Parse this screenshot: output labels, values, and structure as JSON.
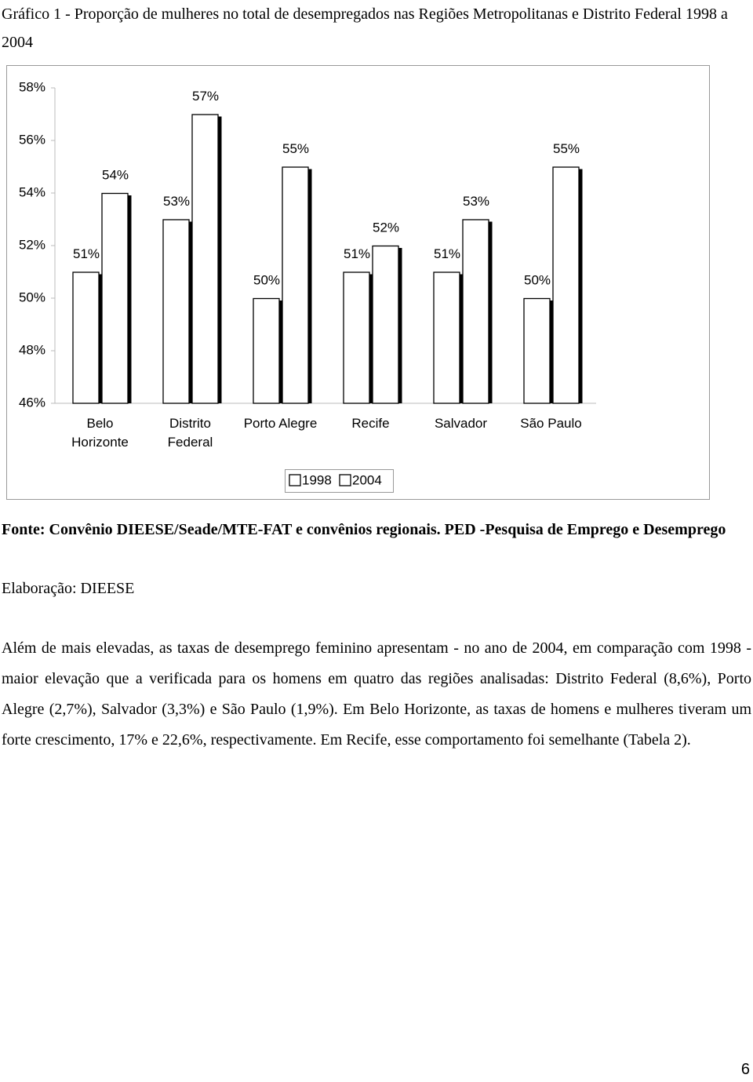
{
  "title": "Gráfico 1 - Proporção de mulheres no total de desempregados  nas Regiões Metropolitanas e Distrito Federal 1998 a 2004",
  "chart_data": {
    "type": "bar",
    "categories": [
      "Belo\nHorizonte",
      "Distrito\nFederal",
      "Porto Alegre",
      "Recife",
      "Salvador",
      "São Paulo"
    ],
    "series": [
      {
        "name": "1998",
        "color": "#ffffff",
        "values": [
          51,
          53,
          50,
          51,
          51,
          50
        ],
        "value_labels": [
          "51%",
          "53%",
          "50%",
          "51%",
          "51%",
          "50%"
        ]
      },
      {
        "name": "2004",
        "color": "#ffffff",
        "values": [
          54,
          57,
          55,
          52,
          53,
          55
        ],
        "value_labels": [
          "54%",
          "57%",
          "55%",
          "52%",
          "53%",
          "55%"
        ]
      }
    ],
    "ylim": [
      46,
      58
    ],
    "yticks": [
      {
        "value": 46,
        "label": "46%"
      },
      {
        "value": 48,
        "label": "48%"
      },
      {
        "value": 50,
        "label": "50%"
      },
      {
        "value": 52,
        "label": "52%"
      },
      {
        "value": 54,
        "label": "54%"
      },
      {
        "value": 56,
        "label": "56%"
      },
      {
        "value": 58,
        "label": "58%"
      }
    ],
    "grid": false,
    "legend": "bottom"
  },
  "source": "Fonte: Convênio DIEESE/Seade/MTE-FAT e convênios regionais. PED -Pesquisa de Emprego e Desemprego",
  "elaboration": "Elaboração: DIEESE",
  "paragraph": "Além de mais elevadas, as taxas de desemprego feminino apresentam - no ano de 2004, em comparação com 1998 - maior elevação que a verificada para os homens em quatro das regiões analisadas: Distrito Federal (8,6%), Porto Alegre (2,7%), Salvador (3,3%) e São Paulo (1,9%). Em Belo Horizonte, as taxas de homens e mulheres tiveram um forte crescimento, 17% e 22,6%, respectivamente. Em Recife, esse comportamento foi semelhante (Tabela 2).",
  "page_number": "6"
}
